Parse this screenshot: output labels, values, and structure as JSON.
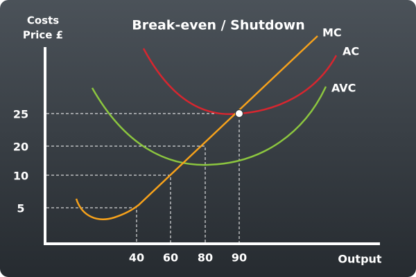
{
  "title": "Break-even / Shutdown",
  "y_axis_label": [
    "Costs",
    "Price £"
  ],
  "x_axis_label": "Output",
  "curves": [
    "MC",
    "AC",
    "AVC"
  ],
  "y_labels": [
    25,
    20,
    10,
    5
  ],
  "x_labels": [
    40,
    60,
    80,
    90
  ]
}
